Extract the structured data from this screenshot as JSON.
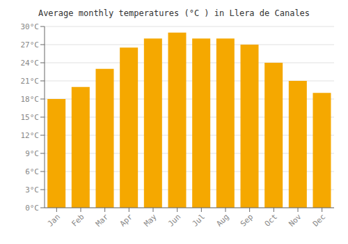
{
  "chart_data": {
    "type": "bar",
    "title": "Average monthly temperatures (°C ) in Llera de Canales",
    "categories": [
      "Jan",
      "Feb",
      "Mar",
      "Apr",
      "May",
      "Jun",
      "Jul",
      "Aug",
      "Sep",
      "Oct",
      "Nov",
      "Dec"
    ],
    "values": [
      18,
      20,
      23,
      26.5,
      28,
      29,
      28,
      28,
      27,
      24,
      21,
      19
    ],
    "color": "#F5A800",
    "ylim": [
      0,
      30
    ],
    "yticks": [
      {
        "value": 0,
        "label": "0°C"
      },
      {
        "value": 3,
        "label": "3°C"
      },
      {
        "value": 6,
        "label": "6°C"
      },
      {
        "value": 9,
        "label": "9°C"
      },
      {
        "value": 12,
        "label": "12°C"
      },
      {
        "value": 15,
        "label": "15°C"
      },
      {
        "value": 18,
        "label": "18°C"
      },
      {
        "value": 21,
        "label": "21°C"
      },
      {
        "value": 24,
        "label": "24°C"
      },
      {
        "value": 27,
        "label": "27°C"
      },
      {
        "value": 30,
        "label": "30°C"
      }
    ],
    "grid": true
  }
}
